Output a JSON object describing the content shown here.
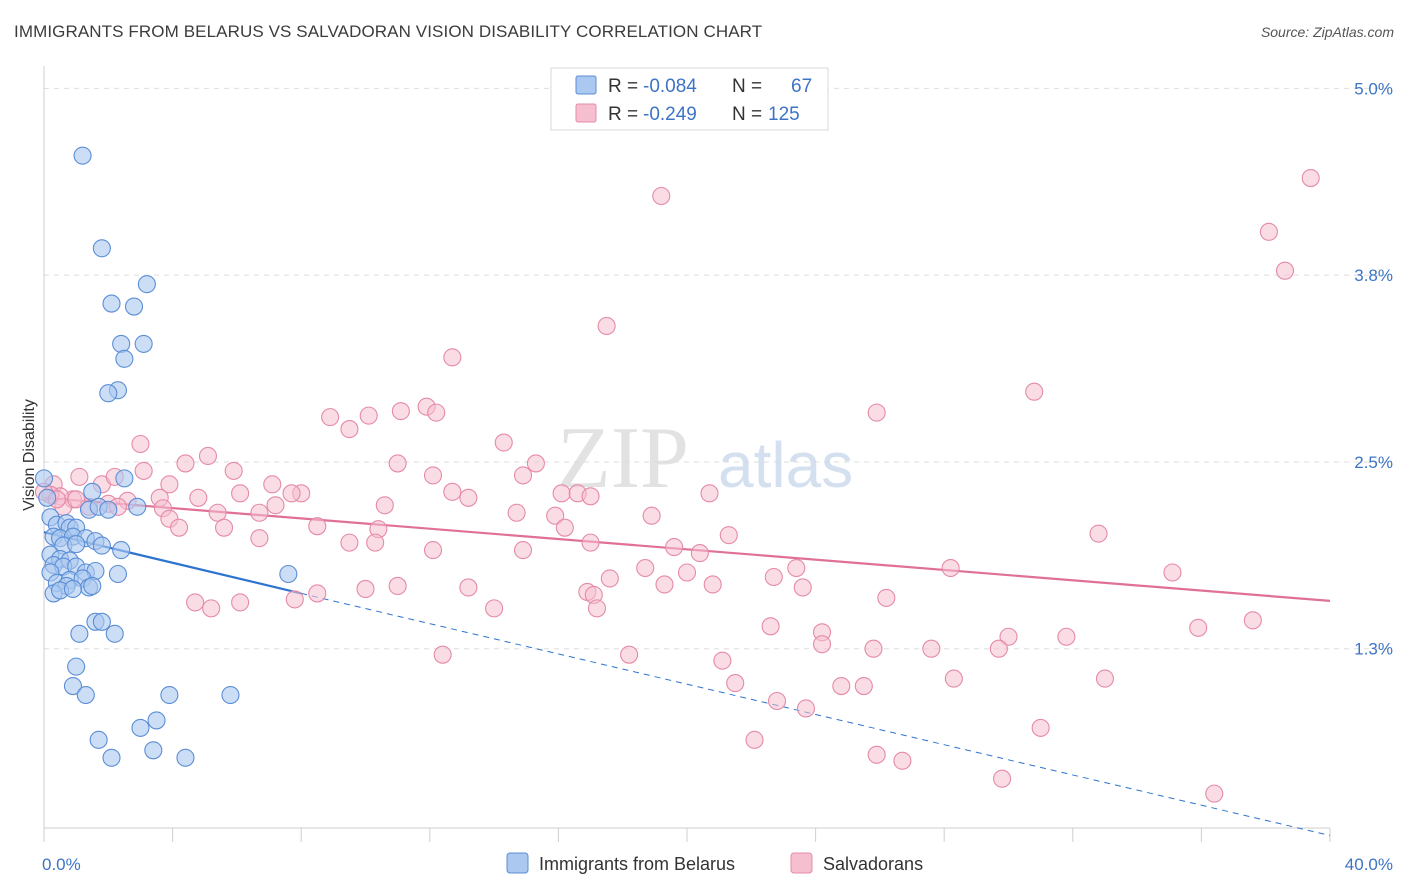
{
  "header": {
    "title": "IMMIGRANTS FROM BELARUS VS SALVADORAN VISION DISABILITY CORRELATION CHART",
    "source": "Source: ZipAtlas.com"
  },
  "watermark": {
    "zip": "ZIP",
    "atlas": "atlas"
  },
  "legend_box": {
    "rows": [
      {
        "r_label": "R =",
        "r_value": "-0.084",
        "n_label": "N =",
        "n_value": "67"
      },
      {
        "r_label": "R =",
        "r_value": "-0.249",
        "n_label": "N =",
        "n_value": "125"
      }
    ]
  },
  "colors": {
    "blue_fill": "#aac8f0",
    "blue_stroke": "#5b8ed6",
    "blue_line": "#2d74d0",
    "pink_fill": "#f6bfd0",
    "pink_stroke": "#e58aa8",
    "pink_line": "#e07098",
    "value_text": "#3d74c6",
    "grid": "#dedede"
  },
  "chart_data": {
    "type": "scatter",
    "title": "IMMIGRANTS FROM BELARUS VS SALVADORAN VISION DISABILITY CORRELATION CHART",
    "ylabel": "Vision Disability",
    "x_tick_labels": {
      "left": "0.0%",
      "right": "40.0%"
    },
    "y_ticks": [
      {
        "value": 5.0,
        "label": "5.0%"
      },
      {
        "value": 3.75,
        "label": "3.8%"
      },
      {
        "value": 2.5,
        "label": "2.5%"
      },
      {
        "value": 1.25,
        "label": "1.3%"
      }
    ],
    "xlim": [
      0,
      40
    ],
    "ylim": [
      0.05,
      5.15
    ],
    "series": [
      {
        "name": "Immigrants from Belarus",
        "color": "blue",
        "R": -0.084,
        "N": 67,
        "trend_solid": {
          "x": [
            0,
            8.0
          ],
          "y": [
            2.03,
            1.62
          ]
        },
        "trend_dashed": {
          "x": [
            8.0,
            40
          ],
          "y": [
            1.62,
            0.0
          ]
        },
        "points": [
          [
            1.2,
            4.55
          ],
          [
            1.8,
            3.93
          ],
          [
            2.1,
            3.56
          ],
          [
            3.2,
            3.69
          ],
          [
            2.8,
            3.54
          ],
          [
            2.4,
            3.29
          ],
          [
            3.1,
            3.29
          ],
          [
            2.5,
            3.19
          ],
          [
            2.3,
            2.98
          ],
          [
            2.0,
            2.96
          ],
          [
            2.5,
            2.39
          ],
          [
            1.5,
            2.3
          ],
          [
            2.9,
            2.2
          ],
          [
            1.4,
            2.18
          ],
          [
            1.7,
            2.2
          ],
          [
            2.0,
            2.18
          ],
          [
            0.2,
            2.13
          ],
          [
            0.4,
            2.08
          ],
          [
            0.7,
            2.09
          ],
          [
            0.8,
            2.06
          ],
          [
            1.0,
            2.06
          ],
          [
            0.3,
            2.0
          ],
          [
            0.5,
            1.99
          ],
          [
            0.9,
            2.0
          ],
          [
            1.3,
            1.99
          ],
          [
            1.6,
            1.97
          ],
          [
            0.6,
            1.94
          ],
          [
            1.0,
            1.95
          ],
          [
            1.8,
            1.94
          ],
          [
            2.4,
            1.91
          ],
          [
            0.2,
            1.88
          ],
          [
            0.5,
            1.85
          ],
          [
            0.8,
            1.84
          ],
          [
            0.3,
            1.81
          ],
          [
            0.6,
            1.8
          ],
          [
            1.0,
            1.8
          ],
          [
            1.3,
            1.76
          ],
          [
            1.6,
            1.77
          ],
          [
            0.2,
            1.76
          ],
          [
            0.4,
            1.69
          ],
          [
            0.8,
            1.71
          ],
          [
            1.2,
            1.72
          ],
          [
            0.7,
            1.67
          ],
          [
            1.4,
            1.66
          ],
          [
            1.5,
            1.67
          ],
          [
            0.3,
            1.62
          ],
          [
            0.5,
            1.64
          ],
          [
            0.9,
            1.65
          ],
          [
            2.3,
            1.75
          ],
          [
            7.6,
            1.75
          ],
          [
            1.6,
            1.43
          ],
          [
            1.8,
            1.43
          ],
          [
            1.1,
            1.35
          ],
          [
            2.2,
            1.35
          ],
          [
            1.0,
            1.13
          ],
          [
            0.9,
            1.0
          ],
          [
            1.3,
            0.94
          ],
          [
            3.9,
            0.94
          ],
          [
            5.8,
            0.94
          ],
          [
            3.5,
            0.77
          ],
          [
            3.0,
            0.72
          ],
          [
            1.7,
            0.64
          ],
          [
            2.1,
            0.52
          ],
          [
            3.4,
            0.57
          ],
          [
            4.4,
            0.52
          ],
          [
            0.0,
            2.39
          ],
          [
            0.1,
            2.26
          ]
        ]
      },
      {
        "name": "Salvadorans",
        "color": "pink",
        "R": -0.249,
        "N": 125,
        "trend_solid": {
          "x": [
            0,
            40
          ],
          "y": [
            2.26,
            1.57
          ]
        },
        "points": [
          [
            19.2,
            4.28
          ],
          [
            39.4,
            4.4
          ],
          [
            38.1,
            4.04
          ],
          [
            38.6,
            3.78
          ],
          [
            17.5,
            3.41
          ],
          [
            12.7,
            3.2
          ],
          [
            30.8,
            2.97
          ],
          [
            11.9,
            2.87
          ],
          [
            11.1,
            2.84
          ],
          [
            10.1,
            2.81
          ],
          [
            12.2,
            2.83
          ],
          [
            8.9,
            2.8
          ],
          [
            9.5,
            2.72
          ],
          [
            25.9,
            2.83
          ],
          [
            14.3,
            2.63
          ],
          [
            3.0,
            2.62
          ],
          [
            5.1,
            2.54
          ],
          [
            4.4,
            2.49
          ],
          [
            11.0,
            2.49
          ],
          [
            15.3,
            2.49
          ],
          [
            3.1,
            2.44
          ],
          [
            5.9,
            2.44
          ],
          [
            14.9,
            2.41
          ],
          [
            12.1,
            2.41
          ],
          [
            1.1,
            2.4
          ],
          [
            0.3,
            2.35
          ],
          [
            1.8,
            2.35
          ],
          [
            2.2,
            2.4
          ],
          [
            3.9,
            2.35
          ],
          [
            7.1,
            2.35
          ],
          [
            12.7,
            2.3
          ],
          [
            13.2,
            2.26
          ],
          [
            16.1,
            2.29
          ],
          [
            16.6,
            2.29
          ],
          [
            17.0,
            2.27
          ],
          [
            20.7,
            2.29
          ],
          [
            8.0,
            2.29
          ],
          [
            7.7,
            2.29
          ],
          [
            6.1,
            2.29
          ],
          [
            4.8,
            2.26
          ],
          [
            3.6,
            2.26
          ],
          [
            2.6,
            2.24
          ],
          [
            1.4,
            2.2
          ],
          [
            2.0,
            2.22
          ],
          [
            0.9,
            2.25
          ],
          [
            0.5,
            2.27
          ],
          [
            0.2,
            2.28
          ],
          [
            0.6,
            2.2
          ],
          [
            2.3,
            2.2
          ],
          [
            3.7,
            2.19
          ],
          [
            5.4,
            2.16
          ],
          [
            6.7,
            2.16
          ],
          [
            7.2,
            2.21
          ],
          [
            10.6,
            2.21
          ],
          [
            14.7,
            2.16
          ],
          [
            15.9,
            2.14
          ],
          [
            18.9,
            2.14
          ],
          [
            3.9,
            2.12
          ],
          [
            4.2,
            2.06
          ],
          [
            5.6,
            2.06
          ],
          [
            8.5,
            2.07
          ],
          [
            10.4,
            2.05
          ],
          [
            16.2,
            2.06
          ],
          [
            21.3,
            2.01
          ],
          [
            6.7,
            1.99
          ],
          [
            10.3,
            1.96
          ],
          [
            9.5,
            1.96
          ],
          [
            17.0,
            1.96
          ],
          [
            19.6,
            1.93
          ],
          [
            12.1,
            1.91
          ],
          [
            14.9,
            1.91
          ],
          [
            20.4,
            1.89
          ],
          [
            28.2,
            1.79
          ],
          [
            32.8,
            2.02
          ],
          [
            35.1,
            1.76
          ],
          [
            17.6,
            1.72
          ],
          [
            20.0,
            1.76
          ],
          [
            23.4,
            1.79
          ],
          [
            20.8,
            1.68
          ],
          [
            16.9,
            1.63
          ],
          [
            17.1,
            1.61
          ],
          [
            26.2,
            1.59
          ],
          [
            23.6,
            1.66
          ],
          [
            13.2,
            1.66
          ],
          [
            11.0,
            1.67
          ],
          [
            10.0,
            1.65
          ],
          [
            18.7,
            1.79
          ],
          [
            22.7,
            1.73
          ],
          [
            19.3,
            1.68
          ],
          [
            8.5,
            1.62
          ],
          [
            7.8,
            1.58
          ],
          [
            6.1,
            1.56
          ],
          [
            4.7,
            1.56
          ],
          [
            5.2,
            1.52
          ],
          [
            14.0,
            1.52
          ],
          [
            17.2,
            1.52
          ],
          [
            22.6,
            1.4
          ],
          [
            24.2,
            1.36
          ],
          [
            35.9,
            1.39
          ],
          [
            37.6,
            1.44
          ],
          [
            30.0,
            1.33
          ],
          [
            31.8,
            1.33
          ],
          [
            24.2,
            1.28
          ],
          [
            25.8,
            1.25
          ],
          [
            27.6,
            1.25
          ],
          [
            29.7,
            1.25
          ],
          [
            18.2,
            1.21
          ],
          [
            12.4,
            1.21
          ],
          [
            21.1,
            1.17
          ],
          [
            24.8,
            1.0
          ],
          [
            25.5,
            1.0
          ],
          [
            28.3,
            1.05
          ],
          [
            21.5,
            1.02
          ],
          [
            22.8,
            0.9
          ],
          [
            23.7,
            0.85
          ],
          [
            33.0,
            1.05
          ],
          [
            31.0,
            0.72
          ],
          [
            22.1,
            0.64
          ],
          [
            25.9,
            0.54
          ],
          [
            26.7,
            0.5
          ],
          [
            29.8,
            0.38
          ],
          [
            36.4,
            0.28
          ],
          [
            0.0,
            2.3
          ],
          [
            0.4,
            2.25
          ],
          [
            1.0,
            2.25
          ]
        ]
      }
    ]
  },
  "bottom_legend": {
    "items": [
      {
        "label": "Immigrants from Belarus",
        "color": "blue"
      },
      {
        "label": "Salvadorans",
        "color": "pink"
      }
    ]
  }
}
